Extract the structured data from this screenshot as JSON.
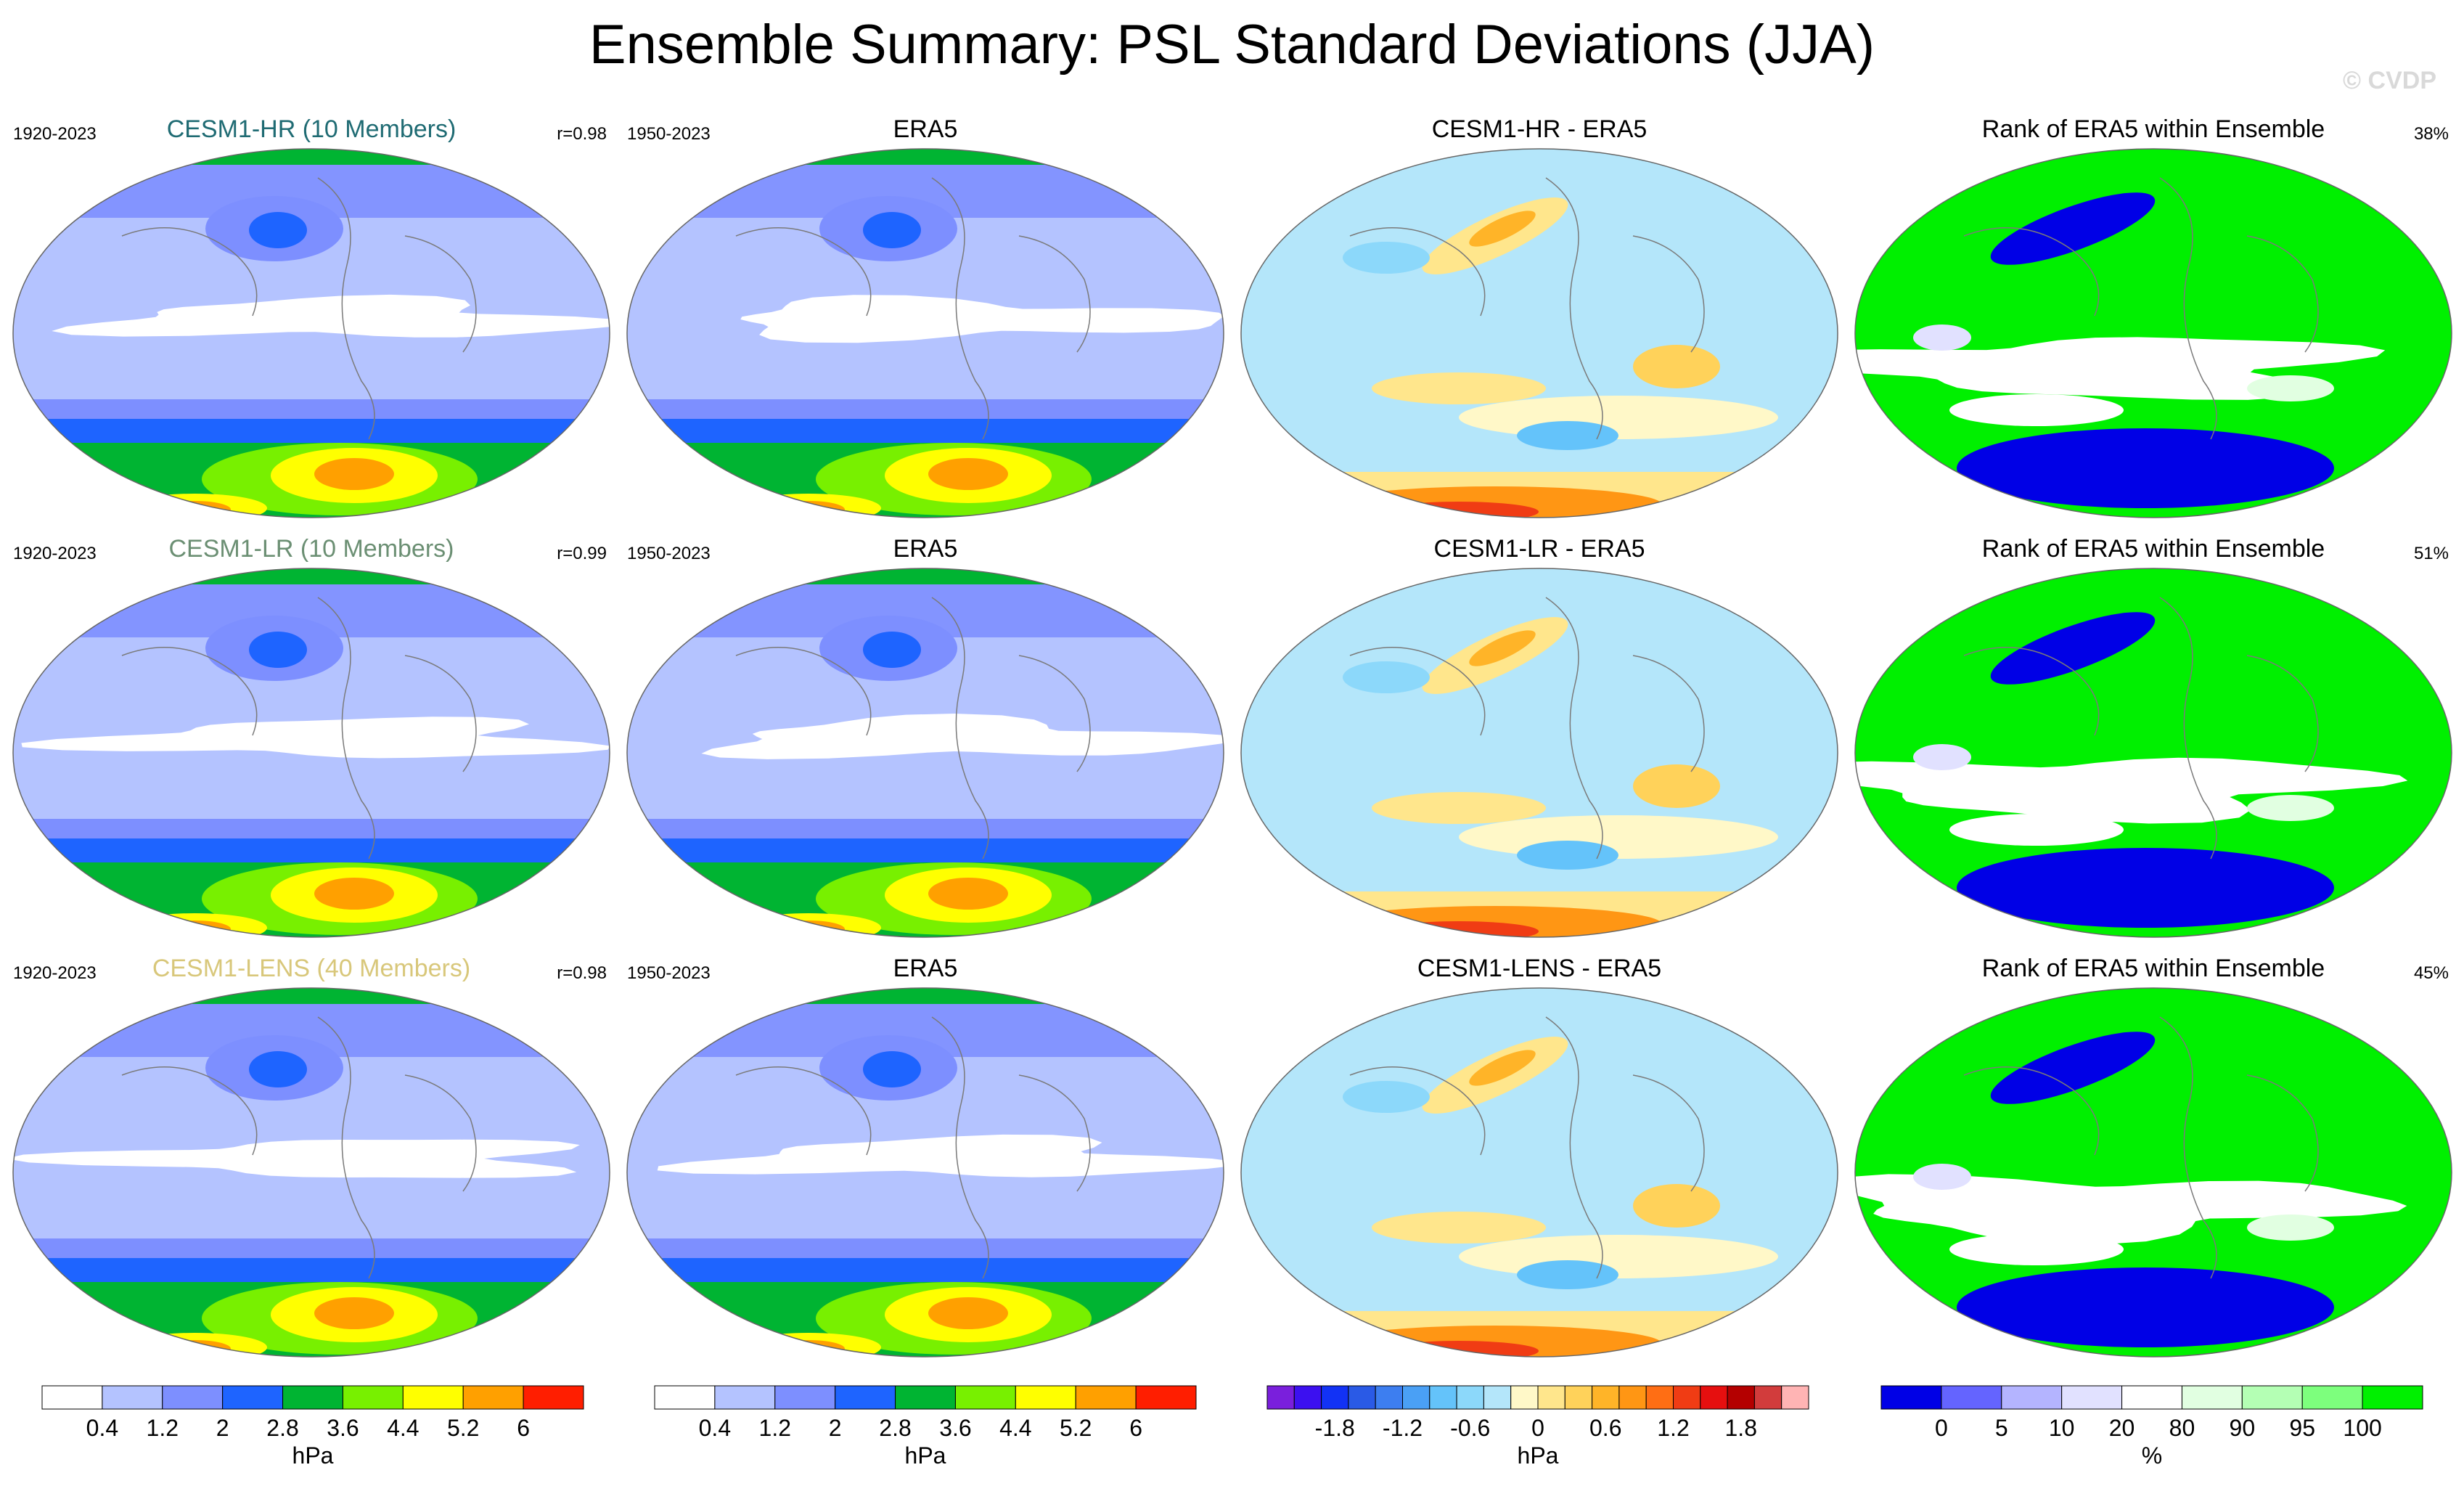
{
  "title": "Ensemble Summary: PSL Standard Deviations (JJA)",
  "watermark": "© CVDP",
  "colors": {
    "sd_levels": [
      "#ffffff",
      "#b4c3ff",
      "#7d8fff",
      "#1e64ff",
      "#00b432",
      "#78f000",
      "#ffff00",
      "#ffa000",
      "#ff1e00"
    ],
    "diff_levels": [
      "#7a1fdc",
      "#3c10f0",
      "#1232f5",
      "#2a5ae6",
      "#3d7ef0",
      "#4aa0f5",
      "#64c3fa",
      "#8cd8fa",
      "#b4e6fa",
      "#fff8c8",
      "#ffe68c",
      "#ffd25a",
      "#ffb428",
      "#ff9614",
      "#ff6e14",
      "#f03c14",
      "#e60f0f",
      "#b40000",
      "#d23c3c",
      "#ffb4b4"
    ],
    "rank_levels": [
      "#0000e6",
      "#6464ff",
      "#b4b4ff",
      "#e1e1ff",
      "#ffffff",
      "#e1ffe1",
      "#b4ffb4",
      "#7dff7d",
      "#00f000"
    ]
  },
  "chart_data": [
    {
      "type": "heatmap",
      "title": "CESM1-HR (10 Members)",
      "period": "1920-2023",
      "stat": "r=0.98",
      "kind": "sd",
      "title_color": "#1f6b73"
    },
    {
      "type": "heatmap",
      "title": "ERA5",
      "period": "1950-2023",
      "kind": "sd"
    },
    {
      "type": "heatmap",
      "title": "CESM1-HR - ERA5",
      "kind": "diff"
    },
    {
      "type": "heatmap",
      "title": "Rank of ERA5 within Ensemble",
      "stat": "38%",
      "kind": "rank"
    },
    {
      "type": "heatmap",
      "title": "CESM1-LR (10 Members)",
      "period": "1920-2023",
      "stat": "r=0.99",
      "kind": "sd",
      "title_color": "#6b8f73"
    },
    {
      "type": "heatmap",
      "title": "ERA5",
      "period": "1950-2023",
      "kind": "sd"
    },
    {
      "type": "heatmap",
      "title": "CESM1-LR - ERA5",
      "kind": "diff"
    },
    {
      "type": "heatmap",
      "title": "Rank of ERA5 within Ensemble",
      "stat": "51%",
      "kind": "rank"
    },
    {
      "type": "heatmap",
      "title": "CESM1-LENS (40 Members)",
      "period": "1920-2023",
      "stat": "r=0.98",
      "kind": "sd",
      "title_color": "#d8c77a"
    },
    {
      "type": "heatmap",
      "title": "ERA5",
      "period": "1950-2023",
      "kind": "sd"
    },
    {
      "type": "heatmap",
      "title": "CESM1-LENS - ERA5",
      "kind": "diff"
    },
    {
      "type": "heatmap",
      "title": "Rank of ERA5 within Ensemble",
      "stat": "45%",
      "kind": "rank"
    }
  ],
  "colorbars": [
    {
      "unit": "hPa",
      "ticks": [
        "0.4",
        "1.2",
        "2",
        "2.8",
        "3.6",
        "4.4",
        "5.2",
        "6"
      ],
      "kind": "sd"
    },
    {
      "unit": "hPa",
      "ticks": [
        "0.4",
        "1.2",
        "2",
        "2.8",
        "3.6",
        "4.4",
        "5.2",
        "6"
      ],
      "kind": "sd"
    },
    {
      "unit": "hPa",
      "ticks": [
        "-1.8",
        "-1.2",
        "-0.6",
        "0",
        "0.6",
        "1.2",
        "1.8"
      ],
      "kind": "diff"
    },
    {
      "unit": "%",
      "ticks": [
        "0",
        "5",
        "10",
        "20",
        "80",
        "90",
        "95",
        "100"
      ],
      "kind": "rank"
    }
  ]
}
